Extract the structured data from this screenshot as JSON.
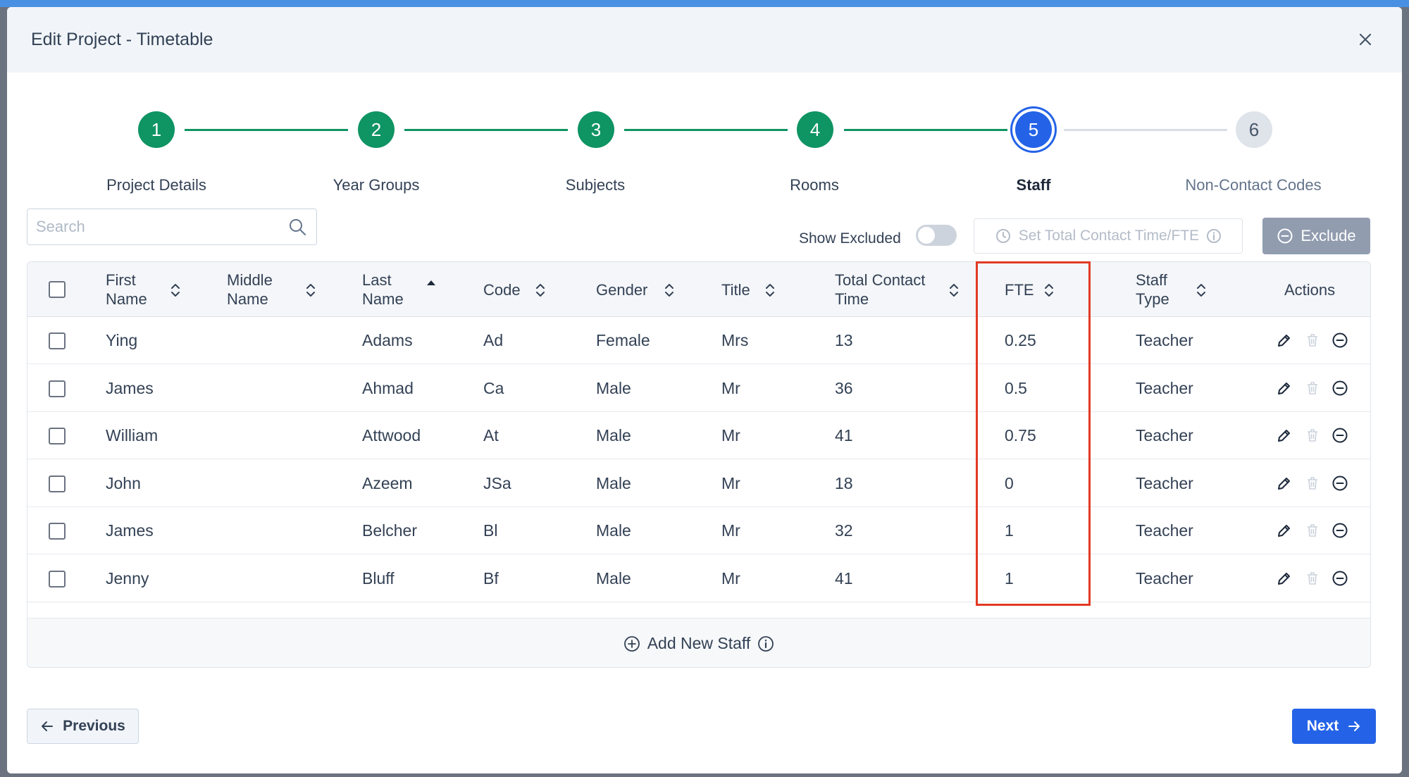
{
  "modal": {
    "title": "Edit Project - Timetable"
  },
  "stepper": {
    "steps": [
      {
        "number": "1",
        "label": "Project Details",
        "state": "done"
      },
      {
        "number": "2",
        "label": "Year Groups",
        "state": "done"
      },
      {
        "number": "3",
        "label": "Subjects",
        "state": "done"
      },
      {
        "number": "4",
        "label": "Rooms",
        "state": "done"
      },
      {
        "number": "5",
        "label": "Staff",
        "state": "active"
      },
      {
        "number": "6",
        "label": "Non-Contact Codes",
        "state": "pending"
      }
    ]
  },
  "toolbar": {
    "search_placeholder": "Search",
    "show_excluded_label": "Show Excluded",
    "show_excluded_on": false,
    "set_total_label": "Set Total Contact Time/FTE",
    "exclude_label": "Exclude"
  },
  "table": {
    "columns": [
      {
        "key": "first_name",
        "label_line1": "First",
        "label_line2": "Name",
        "sort": "none"
      },
      {
        "key": "middle_name",
        "label_line1": "Middle",
        "label_line2": "Name",
        "sort": "none"
      },
      {
        "key": "last_name",
        "label_line1": "Last",
        "label_line2": "Name",
        "sort": "asc"
      },
      {
        "key": "code",
        "label_line1": "Code",
        "label_line2": "",
        "sort": "none"
      },
      {
        "key": "gender",
        "label_line1": "Gender",
        "label_line2": "",
        "sort": "none"
      },
      {
        "key": "title",
        "label_line1": "Title",
        "label_line2": "",
        "sort": "none"
      },
      {
        "key": "total_contact_time",
        "label_line1": "Total Contact",
        "label_line2": "Time",
        "sort": "none"
      },
      {
        "key": "fte",
        "label_line1": "FTE",
        "label_line2": "",
        "sort": "none"
      },
      {
        "key": "staff_type",
        "label_line1": "Staff",
        "label_line2": "Type",
        "sort": "none"
      },
      {
        "key": "actions",
        "label_line1": "Actions",
        "label_line2": "",
        "sort": null
      }
    ],
    "rows": [
      {
        "first_name": "Ying",
        "middle_name": "",
        "last_name": "Adams",
        "code": "Ad",
        "gender": "Female",
        "title": "Mrs",
        "total_contact_time": "13",
        "fte": "0.25",
        "staff_type": "Teacher"
      },
      {
        "first_name": "James",
        "middle_name": "",
        "last_name": "Ahmad",
        "code": "Ca",
        "gender": "Male",
        "title": "Mr",
        "total_contact_time": "36",
        "fte": "0.5",
        "staff_type": "Teacher"
      },
      {
        "first_name": "William",
        "middle_name": "",
        "last_name": "Attwood",
        "code": "At",
        "gender": "Male",
        "title": "Mr",
        "total_contact_time": "41",
        "fte": "0.75",
        "staff_type": "Teacher"
      },
      {
        "first_name": "John",
        "middle_name": "",
        "last_name": "Azeem",
        "code": "JSa",
        "gender": "Male",
        "title": "Mr",
        "total_contact_time": "18",
        "fte": "0",
        "staff_type": "Teacher"
      },
      {
        "first_name": "James",
        "middle_name": "",
        "last_name": "Belcher",
        "code": "Bl",
        "gender": "Male",
        "title": "Mr",
        "total_contact_time": "32",
        "fte": "1",
        "staff_type": "Teacher"
      },
      {
        "first_name": "Jenny",
        "middle_name": "",
        "last_name": "Bluff",
        "code": "Bf",
        "gender": "Male",
        "title": "Mr",
        "total_contact_time": "41",
        "fte": "1",
        "staff_type": "Teacher"
      }
    ],
    "add_new_label": "Add New Staff"
  },
  "footer": {
    "previous_label": "Previous",
    "next_label": "Next"
  },
  "colors": {
    "done": "#0f9463",
    "active": "#2463e7",
    "highlight": "#e23a24"
  },
  "icons": {
    "edit": "pencil-icon",
    "delete": "trash-icon",
    "exclude": "minus-circle-icon"
  }
}
